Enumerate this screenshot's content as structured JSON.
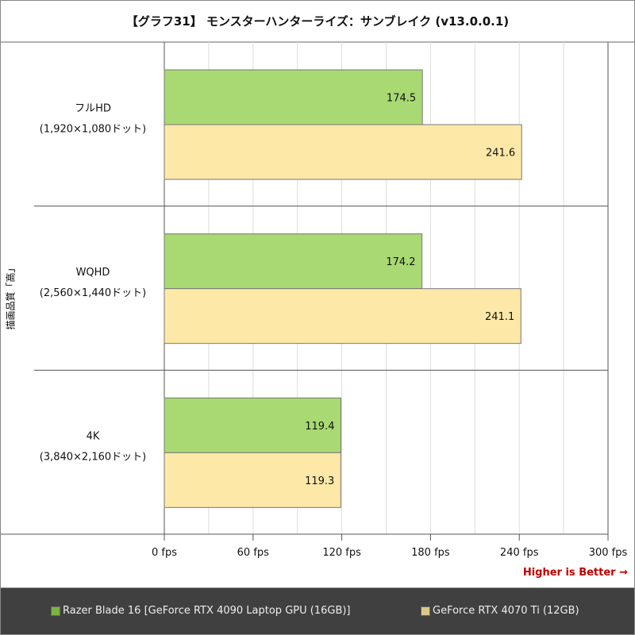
{
  "chart_data": {
    "type": "bar",
    "orientation": "horizontal",
    "title": "【グラフ31】 モンスターハンターライズ：サンブレイク (v13.0.0.1)",
    "ylabel": "描画品質「高」",
    "categories": [
      {
        "name": "フルHD",
        "detail": "(1,920×1,080ドット)"
      },
      {
        "name": "WQHD",
        "detail": "(2,560×1,440ドット)"
      },
      {
        "name": "4K",
        "detail": "(3,840×2,160ドット)"
      }
    ],
    "series": [
      {
        "name": "Razer Blade 16 [GeForce RTX 4090 Laptop GPU (16GB)]",
        "color": "#a9d972",
        "values": [
          174.5,
          174.2,
          119.4
        ]
      },
      {
        "name": "GeForce RTX 4070 Ti (12GB)",
        "color": "#fde8a8",
        "values": [
          241.6,
          241.1,
          119.3
        ]
      }
    ],
    "xlim": [
      0,
      300
    ],
    "xticks": [
      0,
      60,
      120,
      180,
      240,
      300
    ],
    "xtick_labels": [
      "0 fps",
      "60 fps",
      "120 fps",
      "180 fps",
      "240 fps",
      "300 fps"
    ],
    "grid": true,
    "legend_position": "bottom",
    "annotation": "Higher is Better →",
    "legend_swatch_colors": [
      "#7cb342",
      "#d9c98a"
    ]
  }
}
